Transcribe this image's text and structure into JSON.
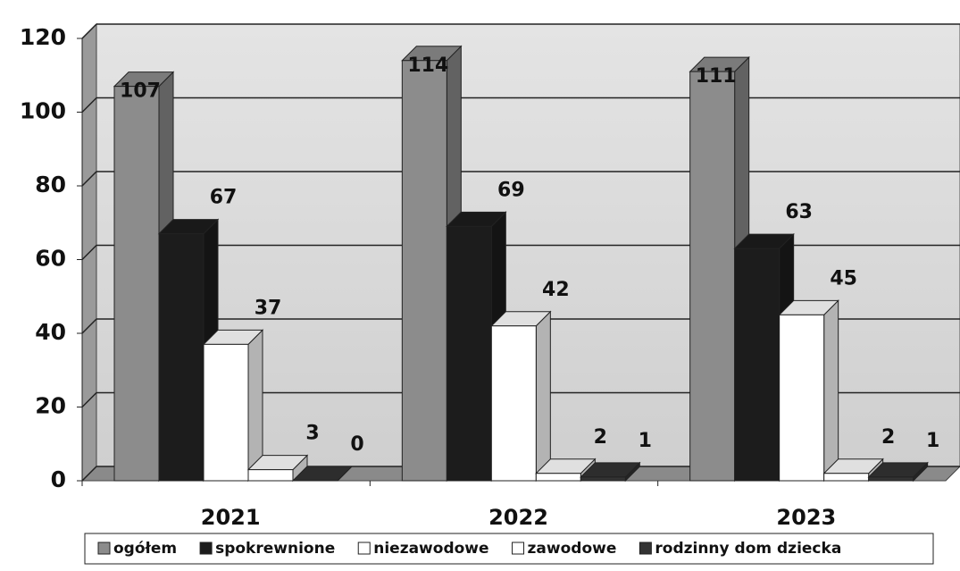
{
  "chart_data": {
    "type": "bar3d",
    "categories": [
      "2021",
      "2022",
      "2023"
    ],
    "series": [
      {
        "name": "ogółem",
        "color": "#8c8c8c",
        "values": [
          107,
          114,
          111
        ]
      },
      {
        "name": "spokrewnione",
        "color": "#1c1c1c",
        "values": [
          67,
          69,
          63
        ]
      },
      {
        "name": "niezawodowe",
        "color": "#ffffff",
        "values": [
          37,
          42,
          45
        ]
      },
      {
        "name": "zawodowe",
        "color": "#ffffff",
        "values": [
          3,
          2,
          2
        ]
      },
      {
        "name": "rodzinny dom dziecka",
        "color": "#333333",
        "values": [
          0,
          1,
          1
        ]
      }
    ],
    "ylim": [
      0,
      120
    ],
    "yticks": [
      0,
      20,
      40,
      60,
      80,
      100,
      120
    ],
    "grid": true,
    "legend": "bottom"
  }
}
